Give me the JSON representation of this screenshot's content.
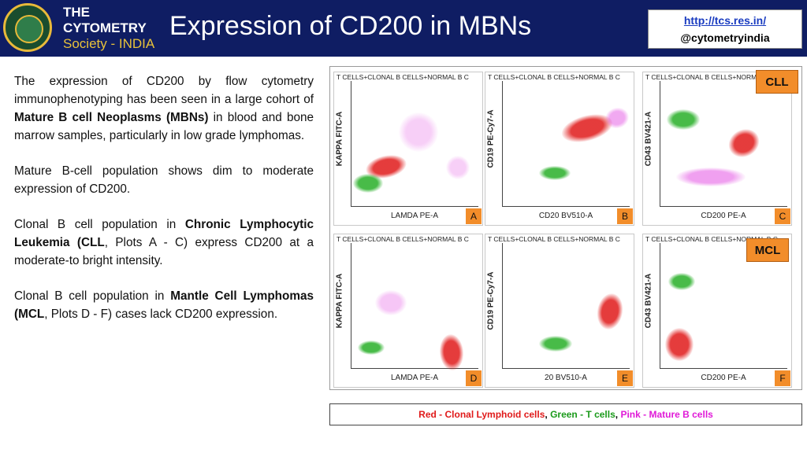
{
  "header": {
    "logo_line1": "THE",
    "logo_line2": "CYTOMETRY",
    "logo_line3": "Society - INDIA",
    "seal_text": "THE CYTOMETRY SOCIETY · INDIA",
    "title": "Expression of CD200 in MBNs",
    "link": "http://tcs.res.in/",
    "handle": "@cytometryindia"
  },
  "body": {
    "p1_a": "The expression of CD200 by flow cytometry immunophenotyping has been seen in a large cohort of ",
    "p1_b": "Mature B cell Neoplasms (MBNs)",
    "p1_c": " in blood and bone marrow samples, particularly in low grade lymphomas.",
    "p2": "Mature B-cell population shows dim to moderate expression of CD200.",
    "p3_a": "Clonal B cell population in ",
    "p3_b": "Chronic Lymphocytic Leukemia (CLL",
    "p3_c": ", Plots A - C) express CD200 at a moderate-to bright intensity.",
    "p4_a": "Clonal B cell population in ",
    "p4_b": "Mantle Cell Lymphomas (MCL",
    "p4_c": ", Plots D - F) cases lack CD200 expression."
  },
  "tags": {
    "cll": "CLL",
    "mcl": "MCL"
  },
  "plots": [
    {
      "title": "T CELLS+CLONAL B CELLS+NORMAL B C",
      "ylabel": "KAPPA FITC-A",
      "xlabel": "LAMDA PE-A",
      "letter": "A"
    },
    {
      "title": "T CELLS+CLONAL B CELLS+NORMAL B C",
      "ylabel": "CD19 PE-Cy7-A",
      "xlabel": "CD20 BV510-A",
      "letter": "B"
    },
    {
      "title": "T CELLS+CLONAL B CELLS+NORMAL B C",
      "ylabel": "CD43 BV421-A",
      "xlabel": "CD200 PE-A",
      "letter": "C"
    },
    {
      "title": "T CELLS+CLONAL B CELLS+NORMAL B C",
      "ylabel": "KAPPA FITC-A",
      "xlabel": "LAMDA PE-A",
      "letter": "D"
    },
    {
      "title": "T CELLS+CLONAL B CELLS+NORMAL B C",
      "ylabel": "CD19 PE-Cy7-A",
      "xlabel": "20 BV510-A",
      "letter": "E"
    },
    {
      "title": "T CELLS+CLONAL B CELLS+NORMAL B C",
      "ylabel": "CD43 BV421-A",
      "xlabel": "CD200 PE-A",
      "letter": "F"
    }
  ],
  "legend": {
    "red": "Red - Clonal Lymphoid cells",
    "sep1": ", ",
    "green": "Green - T cells",
    "sep2": ", ",
    "pink": "Pink - Mature B cells"
  },
  "colors": {
    "red": "#e01a1a",
    "green": "#1aaa1a",
    "pink": "#e040e0",
    "header": "#0f1d63",
    "tag": "#f28d2a"
  }
}
